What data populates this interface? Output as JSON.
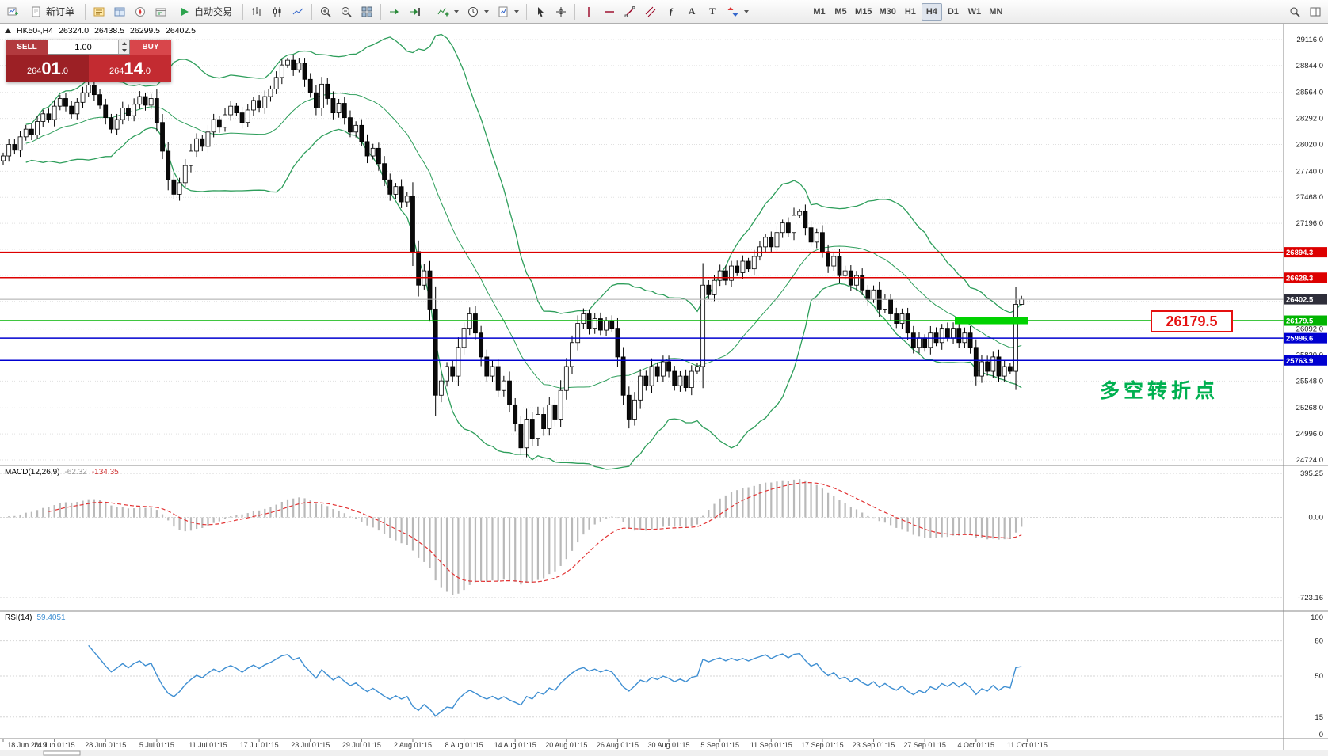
{
  "toolbar": {
    "new_order_label": "新订单",
    "auto_trading_label": "自动交易",
    "timeframes": [
      "M1",
      "M5",
      "M15",
      "M30",
      "H1",
      "H4",
      "D1",
      "W1",
      "MN"
    ],
    "active_timeframe": "H4",
    "glyphs": {
      "fibonacci": "ƒ",
      "text": "A",
      "text_label": "T"
    }
  },
  "chart_header": {
    "symbol": "HK50-,H4",
    "open": "26324.0",
    "high": "26438.5",
    "low": "26299.5",
    "close": "26402.5"
  },
  "trade_panel": {
    "sell_label": "SELL",
    "buy_label": "BUY",
    "volume": "1.00",
    "sell_price": {
      "prefix": "264",
      "big": "01",
      "suffix": ".0"
    },
    "buy_price": {
      "prefix": "264",
      "big": "14",
      "suffix": ".0"
    }
  },
  "indicators": {
    "macd": {
      "label": "MACD(12,26,9)",
      "value_main": "-62.32",
      "value_signal": "-134.35",
      "axis": [
        "395.25",
        "0.00",
        "-723.16"
      ],
      "axis_values": [
        395.25,
        0,
        -723.16
      ],
      "params": {
        "fast": 12,
        "slow": 26,
        "signal": 9
      }
    },
    "rsi": {
      "label": "RSI(14)",
      "value": "59.4051",
      "axis_labels": [
        "100",
        "80",
        "50",
        "15",
        "0"
      ],
      "axis_values": [
        100,
        80,
        50,
        15,
        0
      ],
      "levels": [
        80,
        50,
        15
      ],
      "period": 14
    },
    "bollinger": {
      "period": 20,
      "deviation": 2
    }
  },
  "annotations": {
    "pivot_callout": "26179.5",
    "turning_point_text": "多空转折点"
  },
  "chart_data": {
    "type": "candlestick",
    "symbol": "HK50-",
    "timeframe": "H4",
    "price_range": [
      24724,
      29116
    ],
    "y_axis_grid_labels": [
      "29116.0",
      "28844.0",
      "28564.0",
      "28292.0",
      "28020.0",
      "27740.0",
      "27468.0",
      "27196.0",
      "26092.0",
      "25820.0",
      "25548.0",
      "25268.0",
      "24996.0",
      "24724.0"
    ],
    "grid_only_levels": [
      26924,
      26652,
      26380
    ],
    "x_labels": [
      "18 Jun 2019",
      "24 Jun 01:15",
      "28 Jun 01:15",
      "5 Jul 01:15",
      "11 Jul 01:15",
      "17 Jul 01:15",
      "23 Jul 01:15",
      "29 Jul 01:15",
      "2 Aug 01:15",
      "8 Aug 01:15",
      "14 Aug 01:15",
      "20 Aug 01:15",
      "26 Aug 01:15",
      "30 Aug 01:15",
      "5 Sep 01:15",
      "11 Sep 01:15",
      "17 Sep 01:15",
      "23 Sep 01:15",
      "27 Sep 01:15",
      "4 Oct 01:15",
      "11 Oct 01:15"
    ],
    "bars_per_label": 9,
    "first_open": 27850,
    "closes": [
      27900,
      28020,
      27960,
      28100,
      28180,
      28120,
      28260,
      28340,
      28280,
      28420,
      28500,
      28420,
      28340,
      28460,
      28560,
      28640,
      28540,
      28430,
      28300,
      28180,
      28280,
      28400,
      28320,
      28440,
      28520,
      28430,
      28500,
      28250,
      27950,
      27650,
      27500,
      27620,
      27800,
      27950,
      28080,
      28000,
      28150,
      28280,
      28200,
      28330,
      28420,
      28350,
      28250,
      28380,
      28480,
      28400,
      28520,
      28600,
      28720,
      28850,
      28900,
      28800,
      28870,
      28700,
      28560,
      28400,
      28650,
      28500,
      28350,
      28450,
      28300,
      28150,
      28220,
      28050,
      27900,
      27980,
      27820,
      27650,
      27500,
      27580,
      27420,
      27480,
      26900,
      26550,
      26700,
      26300,
      25400,
      25550,
      25700,
      25600,
      25900,
      26100,
      26250,
      26050,
      25800,
      25600,
      25700,
      25450,
      25550,
      25300,
      25100,
      24850,
      25150,
      24950,
      25200,
      25050,
      25300,
      25150,
      25450,
      25700,
      25950,
      26150,
      26250,
      26100,
      26200,
      26080,
      26180,
      26100,
      25800,
      25400,
      25150,
      25350,
      25600,
      25500,
      25700,
      25600,
      25750,
      25650,
      25500,
      25600,
      25480,
      25650,
      25700,
      26550,
      26450,
      26600,
      26700,
      26600,
      26750,
      26680,
      26800,
      26720,
      26850,
      26950,
      27050,
      26950,
      27100,
      27200,
      27100,
      27280,
      27320,
      27150,
      27000,
      27100,
      26900,
      26750,
      26850,
      26650,
      26700,
      26550,
      26650,
      26500,
      26400,
      26500,
      26300,
      26400,
      26250,
      26150,
      26250,
      26050,
      25900,
      26000,
      25900,
      26050,
      25950,
      26100,
      26000,
      26100,
      25950,
      26050,
      25900,
      25600,
      25750,
      25650,
      25800,
      25600,
      25700,
      25650,
      26350,
      26402.5
    ],
    "levels": [
      {
        "price": 26894.3,
        "label": "26894.3",
        "color": "#dd0000",
        "kind": "resistance"
      },
      {
        "price": 26628.3,
        "label": "26628.3",
        "color": "#dd0000",
        "kind": "resistance"
      },
      {
        "price": 26402.5,
        "label": "26402.5",
        "color": "#2e2e3a",
        "kind": "current-price"
      },
      {
        "price": 26179.5,
        "label": "26179.5",
        "color": "#00b400",
        "kind": "pivot"
      },
      {
        "price": 25996.6,
        "label": "25996.6",
        "color": "#0000d0",
        "kind": "support"
      },
      {
        "price": 25763.9,
        "label": "25763.9",
        "color": "#0000d0",
        "kind": "support"
      }
    ],
    "highlight_segment": {
      "price": 26179.5,
      "color": "#00d200"
    }
  }
}
